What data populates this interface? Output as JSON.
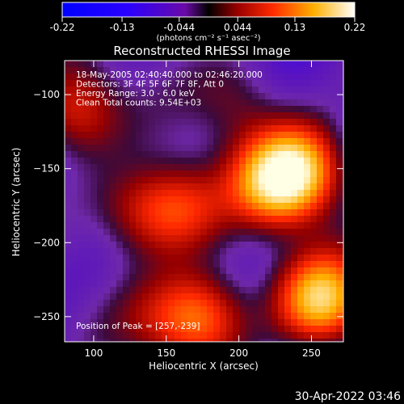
{
  "chart_data": {
    "type": "heatmap",
    "title": "Reconstructed RHESSI Image",
    "xlabel": "Heliocentric X (arcsec)",
    "ylabel": "Heliocentric Y (arcsec)",
    "xlim": [
      80,
      272
    ],
    "ylim": [
      -267,
      -77
    ],
    "xticks": [
      "100",
      "150",
      "200",
      "250"
    ],
    "yticks": [
      "-100",
      "-150",
      "-200",
      "-250"
    ],
    "colorbar": {
      "min": -0.22,
      "max": 0.22,
      "ticks": [
        "-0.22",
        "-0.13",
        "-0.044",
        "0.044",
        "0.13",
        "0.22"
      ],
      "units_label": "(photons cm⁻² s⁻¹ asec⁻²)"
    },
    "annotations": [
      "18-May-2005 02:40:40.000 to 02:46:20.000",
      "Detectors: 3F 4F 5F 6F 7F 8F, Att 0",
      "Energy Range: 3.0 - 6.0 keV",
      "Clean     Total counts: 9.54E+03"
    ],
    "peak_label": "Position of Peak = [257,-239]",
    "peaks": [
      {
        "x": 257,
        "y": -239,
        "value": 0.22
      },
      {
        "x": 225,
        "y": -160,
        "value": 0.18
      },
      {
        "x": 245,
        "y": -150,
        "value": 0.16
      },
      {
        "x": 175,
        "y": -250,
        "value": 0.17
      },
      {
        "x": 160,
        "y": -175,
        "value": 0.12
      },
      {
        "x": 130,
        "y": -180,
        "value": 0.1
      },
      {
        "x": 88,
        "y": -110,
        "value": 0.14
      },
      {
        "x": 200,
        "y": -105,
        "value": 0.07
      },
      {
        "x": 145,
        "y": -255,
        "value": 0.06
      }
    ]
  },
  "footer": {
    "timestamp": "30-Apr-2022 03:46"
  },
  "colors": {
    "background": "#000000",
    "foreground": "#ffffff"
  }
}
